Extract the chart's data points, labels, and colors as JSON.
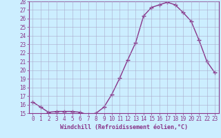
{
  "x": [
    0,
    1,
    2,
    3,
    4,
    5,
    6,
    7,
    8,
    9,
    10,
    11,
    12,
    13,
    14,
    15,
    16,
    17,
    18,
    19,
    20,
    21,
    22,
    23
  ],
  "y": [
    16.3,
    15.7,
    15.1,
    15.2,
    15.2,
    15.2,
    15.1,
    14.8,
    15.0,
    15.7,
    17.2,
    19.1,
    21.2,
    23.2,
    26.3,
    27.3,
    27.6,
    27.9,
    27.6,
    26.7,
    25.7,
    23.5,
    21.0,
    19.7
  ],
  "line_color": "#883388",
  "marker": "+",
  "marker_size": 4,
  "marker_linewidth": 1.0,
  "bg_color": "#cceeff",
  "grid_color": "#aaaacc",
  "xlabel": "Windchill (Refroidissement éolien,°C)",
  "xlabel_color": "#883388",
  "ylim": [
    15,
    28
  ],
  "xlim": [
    -0.5,
    23.5
  ],
  "yticks": [
    15,
    16,
    17,
    18,
    19,
    20,
    21,
    22,
    23,
    24,
    25,
    26,
    27,
    28
  ],
  "xticks": [
    0,
    1,
    2,
    3,
    4,
    5,
    6,
    7,
    8,
    9,
    10,
    11,
    12,
    13,
    14,
    15,
    16,
    17,
    18,
    19,
    20,
    21,
    22,
    23
  ],
  "tick_label_color": "#883388",
  "spine_color": "#883388",
  "xlabel_fontsize": 6.0,
  "tick_fontsize": 5.5
}
